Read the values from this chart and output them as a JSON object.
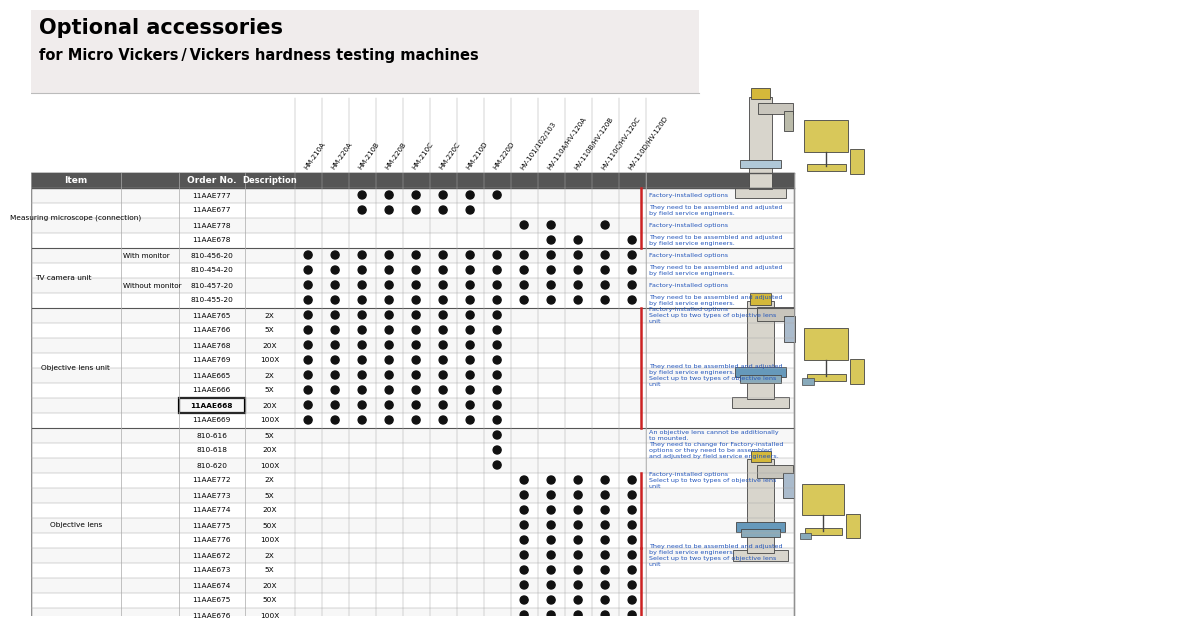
{
  "title_line1": "Optional accessories",
  "title_line2": "for Micro Vickers / Vickers hardness testing machines",
  "header_bg": "#555555",
  "title_bg": "#f0ecec",
  "col_headers": [
    "HM-210A",
    "HM-220A",
    "HM-210B",
    "HM-220B",
    "HM-210C",
    "HM-220C",
    "HM-210D",
    "HM-220D",
    "HV-101/102/103",
    "HV-110A/HV-120A",
    "HV-110B/HV-120B",
    "HV-110C/HV-120C",
    "HV-110D/HV-120D"
  ],
  "rows": [
    {
      "item": "Measuring microscope (connection)",
      "order": "11AAE777",
      "desc": "",
      "dots": [
        0,
        0,
        1,
        1,
        1,
        1,
        1,
        1,
        0,
        0,
        0,
        0,
        0
      ],
      "note": "Factory-installed options",
      "item_span": 4,
      "subitem": ""
    },
    {
      "item": "",
      "order": "11AAE677",
      "desc": "",
      "dots": [
        0,
        0,
        1,
        1,
        1,
        1,
        1,
        0,
        0,
        0,
        0,
        0,
        0
      ],
      "note": "They need to be assembled and adjusted\nby field service engineers.",
      "item_span": 0,
      "subitem": ""
    },
    {
      "item": "",
      "order": "11AAE778",
      "desc": "",
      "dots": [
        0,
        0,
        0,
        0,
        0,
        0,
        0,
        0,
        1,
        1,
        0,
        1,
        0
      ],
      "note": "Factory-installed options",
      "item_span": 0,
      "subitem": ""
    },
    {
      "item": "",
      "order": "11AAE678",
      "desc": "",
      "dots": [
        0,
        0,
        0,
        0,
        0,
        0,
        0,
        0,
        0,
        1,
        1,
        0,
        1
      ],
      "note": "They need to be assembled and adjusted\nby field service engineers.",
      "item_span": 0,
      "subitem": ""
    },
    {
      "item": "TV camera unit",
      "order": "810-456-20",
      "desc": "",
      "dots": [
        1,
        1,
        1,
        1,
        1,
        1,
        1,
        1,
        1,
        1,
        1,
        1,
        1
      ],
      "note": "Factory-installed options",
      "item_span": 4,
      "subitem": "With monitor"
    },
    {
      "item": "",
      "order": "810-454-20",
      "desc": "",
      "dots": [
        1,
        1,
        1,
        1,
        1,
        1,
        1,
        1,
        1,
        1,
        1,
        1,
        1
      ],
      "note": "They need to be assembled and adjusted\nby field service engineers.",
      "item_span": 0,
      "subitem": ""
    },
    {
      "item": "",
      "order": "810-457-20",
      "desc": "",
      "dots": [
        1,
        1,
        1,
        1,
        1,
        1,
        1,
        1,
        1,
        1,
        1,
        1,
        1
      ],
      "note": "Factory-installed options",
      "item_span": 0,
      "subitem": "Without monitor"
    },
    {
      "item": "",
      "order": "810-455-20",
      "desc": "",
      "dots": [
        1,
        1,
        1,
        1,
        1,
        1,
        1,
        1,
        1,
        1,
        1,
        1,
        1
      ],
      "note": "They need to be assembled and adjusted\nby field service engineers.",
      "item_span": 0,
      "subitem": ""
    },
    {
      "item": "Objective lens unit",
      "order": "11AAE765",
      "desc": "2X",
      "dots": [
        1,
        1,
        1,
        1,
        1,
        1,
        1,
        1,
        0,
        0,
        0,
        0,
        0
      ],
      "note": "Factory-installed options\nSelect up to two types of objective lens\nunit",
      "item_span": 8,
      "subitem": ""
    },
    {
      "item": "",
      "order": "11AAE766",
      "desc": "5X",
      "dots": [
        1,
        1,
        1,
        1,
        1,
        1,
        1,
        1,
        0,
        0,
        0,
        0,
        0
      ],
      "note": "",
      "item_span": 0,
      "subitem": ""
    },
    {
      "item": "",
      "order": "11AAE768",
      "desc": "20X",
      "dots": [
        1,
        1,
        1,
        1,
        1,
        1,
        1,
        1,
        0,
        0,
        0,
        0,
        0
      ],
      "note": "",
      "item_span": 0,
      "subitem": ""
    },
    {
      "item": "",
      "order": "11AAE769",
      "desc": "100X",
      "dots": [
        1,
        1,
        1,
        1,
        1,
        1,
        1,
        1,
        0,
        0,
        0,
        0,
        0
      ],
      "note": "",
      "item_span": 0,
      "subitem": ""
    },
    {
      "item": "",
      "order": "11AAE665",
      "desc": "2X",
      "dots": [
        1,
        1,
        1,
        1,
        1,
        1,
        1,
        1,
        0,
        0,
        0,
        0,
        0
      ],
      "note": "They need to be assembled and adjusted\nby field service engineers.\nSelect up to two types of objective lens\nunit",
      "item_span": 0,
      "subitem": ""
    },
    {
      "item": "",
      "order": "11AAE666",
      "desc": "5X",
      "dots": [
        1,
        1,
        1,
        1,
        1,
        1,
        1,
        1,
        0,
        0,
        0,
        0,
        0
      ],
      "note": "",
      "item_span": 0,
      "subitem": ""
    },
    {
      "item": "",
      "order": "11AAE668",
      "desc": "20X",
      "dots": [
        1,
        1,
        1,
        1,
        1,
        1,
        1,
        1,
        0,
        0,
        0,
        0,
        0
      ],
      "note": "",
      "item_span": 0,
      "subitem": "",
      "bold_order": true
    },
    {
      "item": "",
      "order": "11AAE669",
      "desc": "100X",
      "dots": [
        1,
        1,
        1,
        1,
        1,
        1,
        1,
        1,
        0,
        0,
        0,
        0,
        0
      ],
      "note": "",
      "item_span": 0,
      "subitem": ""
    },
    {
      "item": "Objective lens",
      "order": "810-616",
      "desc": "5X",
      "dots": [
        0,
        0,
        0,
        0,
        0,
        0,
        0,
        1,
        0,
        0,
        0,
        0,
        0
      ],
      "note": "An objective lens cannot be additionally\nto mounted.",
      "item_span": 13,
      "subitem": ""
    },
    {
      "item": "",
      "order": "810-618",
      "desc": "20X",
      "dots": [
        0,
        0,
        0,
        0,
        0,
        0,
        0,
        1,
        0,
        0,
        0,
        0,
        0
      ],
      "note": "They need to change for Factory-installed\noptions or they need to be assembled\nand adjusted by field service engineers.",
      "item_span": 0,
      "subitem": ""
    },
    {
      "item": "",
      "order": "810-620",
      "desc": "100X",
      "dots": [
        0,
        0,
        0,
        0,
        0,
        0,
        0,
        1,
        0,
        0,
        0,
        0,
        0
      ],
      "note": "",
      "item_span": 0,
      "subitem": ""
    },
    {
      "item": "",
      "order": "11AAE772",
      "desc": "2X",
      "dots": [
        0,
        0,
        0,
        0,
        0,
        0,
        0,
        0,
        1,
        1,
        1,
        1,
        1
      ],
      "note": "Factory-installed options\nSelect up to two types of objective lens\nunit",
      "item_span": 0,
      "subitem": ""
    },
    {
      "item": "",
      "order": "11AAE773",
      "desc": "5X",
      "dots": [
        0,
        0,
        0,
        0,
        0,
        0,
        0,
        0,
        1,
        1,
        1,
        1,
        1
      ],
      "note": "",
      "item_span": 0,
      "subitem": ""
    },
    {
      "item": "",
      "order": "11AAE774",
      "desc": "20X",
      "dots": [
        0,
        0,
        0,
        0,
        0,
        0,
        0,
        0,
        1,
        1,
        1,
        1,
        1
      ],
      "note": "",
      "item_span": 0,
      "subitem": ""
    },
    {
      "item": "",
      "order": "11AAE775",
      "desc": "50X",
      "dots": [
        0,
        0,
        0,
        0,
        0,
        0,
        0,
        0,
        1,
        1,
        1,
        1,
        1
      ],
      "note": "",
      "item_span": 0,
      "subitem": ""
    },
    {
      "item": "",
      "order": "11AAE776",
      "desc": "100X",
      "dots": [
        0,
        0,
        0,
        0,
        0,
        0,
        0,
        0,
        1,
        1,
        1,
        1,
        1
      ],
      "note": "",
      "item_span": 0,
      "subitem": ""
    },
    {
      "item": "",
      "order": "11AAE672",
      "desc": "2X",
      "dots": [
        0,
        0,
        0,
        0,
        0,
        0,
        0,
        0,
        1,
        1,
        1,
        1,
        1
      ],
      "note": "They need to be assembled and adjusted\nby field service engineers.\nSelect up to two types of objective lens\nunit",
      "item_span": 0,
      "subitem": ""
    },
    {
      "item": "",
      "order": "11AAE673",
      "desc": "5X",
      "dots": [
        0,
        0,
        0,
        0,
        0,
        0,
        0,
        0,
        1,
        1,
        1,
        1,
        1
      ],
      "note": "",
      "item_span": 0,
      "subitem": ""
    },
    {
      "item": "",
      "order": "11AAE674",
      "desc": "20X",
      "dots": [
        0,
        0,
        0,
        0,
        0,
        0,
        0,
        0,
        1,
        1,
        1,
        1,
        1
      ],
      "note": "",
      "item_span": 0,
      "subitem": ""
    },
    {
      "item": "",
      "order": "11AAE675",
      "desc": "50X",
      "dots": [
        0,
        0,
        0,
        0,
        0,
        0,
        0,
        0,
        1,
        1,
        1,
        1,
        1
      ],
      "note": "",
      "item_span": 0,
      "subitem": ""
    },
    {
      "item": "",
      "order": "11AAE676",
      "desc": "100X",
      "dots": [
        0,
        0,
        0,
        0,
        0,
        0,
        0,
        0,
        1,
        1,
        1,
        1,
        1
      ],
      "note": "",
      "item_span": 0,
      "subitem": ""
    }
  ],
  "section_separators": [
    4,
    8,
    16
  ],
  "highlight_rows": [
    14
  ],
  "dot_color": "#111111",
  "line_color": "#aaaaaa",
  "thick_line_color": "#555555",
  "note_color": "#2255bb",
  "red_lines": [
    [
      0,
      4
    ],
    [
      8,
      16
    ],
    [
      19,
      24
    ],
    [
      24,
      29
    ]
  ]
}
